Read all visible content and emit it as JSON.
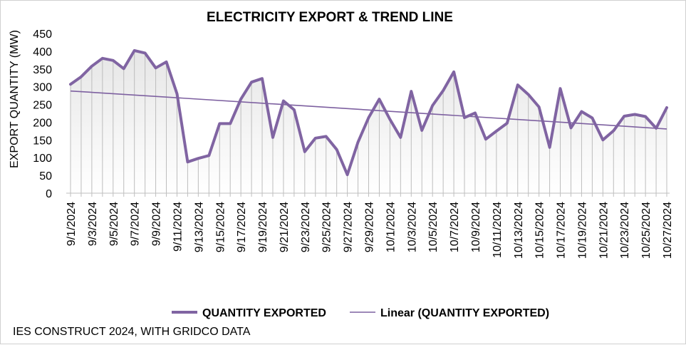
{
  "colors": {
    "series": "#8064a2",
    "trend": "#7d60a0",
    "dropline": "#bdbdbd",
    "area_top": "#e6e6e6"
  },
  "source_note": "IES CONSTRUCT 2024, WITH GRIDCO DATA",
  "chart_data": {
    "type": "line",
    "title": "ELECTRICITY  EXPORT & TREND LINE",
    "xlabel": "",
    "ylabel": "EXPORT QUANTITY (MW)",
    "ylim": [
      0,
      450
    ],
    "yticks": [
      0,
      50,
      100,
      150,
      200,
      250,
      300,
      350,
      400,
      450
    ],
    "dates": [
      "9/1/2024",
      "9/2/2024",
      "9/3/2024",
      "9/4/2024",
      "9/5/2024",
      "9/6/2024",
      "9/7/2024",
      "9/8/2024",
      "9/9/2024",
      "9/10/2024",
      "9/11/2024",
      "9/12/2024",
      "9/13/2024",
      "9/14/2024",
      "9/15/2024",
      "9/16/2024",
      "9/17/2024",
      "9/18/2024",
      "9/19/2024",
      "9/20/2024",
      "9/21/2024",
      "9/22/2024",
      "9/23/2024",
      "9/24/2024",
      "9/25/2024",
      "9/26/2024",
      "9/27/2024",
      "9/28/2024",
      "9/29/2024",
      "9/30/2024",
      "10/1/2024",
      "10/2/2024",
      "10/3/2024",
      "10/4/2024",
      "10/5/2024",
      "10/6/2024",
      "10/7/2024",
      "10/8/2024",
      "10/9/2024",
      "10/10/2024",
      "10/11/2024",
      "10/12/2024",
      "10/13/2024",
      "10/14/2024",
      "10/15/2024",
      "10/16/2024",
      "10/17/2024",
      "10/18/2024",
      "10/19/2024",
      "10/20/2024",
      "10/21/2024",
      "10/22/2024",
      "10/23/2024",
      "10/24/2024",
      "10/25/2024",
      "10/26/2024",
      "10/27/2024"
    ],
    "tick_labels": [
      "9/1/2024",
      "9/3/2024",
      "9/5/2024",
      "9/7/2024",
      "9/9/2024",
      "9/11/2024",
      "9/13/2024",
      "9/15/2024",
      "9/17/2024",
      "9/19/2024",
      "9/21/2024",
      "9/23/2024",
      "9/25/2024",
      "9/27/2024",
      "9/29/2024",
      "10/1/2024",
      "10/3/2024",
      "10/5/2024",
      "10/7/2024",
      "10/9/2024",
      "10/11/2024",
      "10/13/2024",
      "10/15/2024",
      "10/17/2024",
      "10/19/2024",
      "10/21/2024",
      "10/23/2024",
      "10/25/2024",
      "10/27/2024"
    ],
    "series": [
      {
        "name": "QUANTITY EXPORTED",
        "values": [
          307,
          328,
          358,
          380,
          374,
          351,
          402,
          395,
          353,
          370,
          280,
          88,
          98,
          106,
          196,
          196,
          265,
          313,
          323,
          157,
          260,
          235,
          117,
          155,
          160,
          123,
          52,
          144,
          213,
          265,
          208,
          157,
          287,
          177,
          247,
          289,
          342,
          213,
          226,
          152,
          175,
          197,
          305,
          278,
          243,
          129,
          295,
          184,
          230,
          212,
          150,
          176,
          217,
          222,
          216,
          183,
          241
        ]
      }
    ],
    "trend": {
      "name": "Linear (QUANTITY EXPORTED)",
      "type": "linear",
      "start": 288,
      "end": 181
    }
  }
}
